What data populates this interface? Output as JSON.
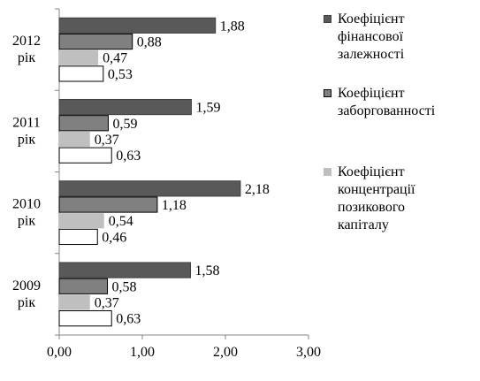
{
  "chart_data": {
    "type": "bar",
    "orientation": "horizontal",
    "categories": [
      [
        "2012",
        "рік"
      ],
      [
        "2011",
        "рік"
      ],
      [
        "2010",
        "рік"
      ],
      [
        "2009",
        "рік"
      ]
    ],
    "series": [
      {
        "name": "Коефіцієнт фінансової залежності",
        "legend_lines": [
          "Коефіцієнт",
          "фінансової",
          "залежності"
        ],
        "color": "#595959",
        "stroke": "#404040",
        "values": [
          1.88,
          1.59,
          2.18,
          1.58
        ]
      },
      {
        "name": "Коефіцієнт заборгованності",
        "legend_lines": [
          "Коефіцієнт",
          "заборгованності"
        ],
        "color": "#808080",
        "stroke": "#000000",
        "values": [
          0.88,
          0.59,
          1.18,
          0.58
        ]
      },
      {
        "name": "Коефіцієнт концентрації позикового капіталу",
        "legend_lines": [
          "Коефіцієнт",
          "концентрації",
          "позикового",
          "капіталу"
        ],
        "color": "#bfbfbf",
        "stroke": "#bfbfbf",
        "values": [
          0.47,
          0.37,
          0.54,
          0.37
        ]
      },
      {
        "name": "",
        "legend_lines": [],
        "color": "#ffffff",
        "stroke": "#000000",
        "values": [
          0.53,
          0.63,
          0.46,
          0.63
        ]
      }
    ],
    "value_labels": [
      [
        "1,88",
        "0,88",
        "0,47",
        "0,53"
      ],
      [
        "1,59",
        "0,59",
        "0,37",
        "0,63"
      ],
      [
        "2,18",
        "1,18",
        "0,54",
        "0,46"
      ],
      [
        "1,58",
        "0,58",
        "0,37",
        "0,63"
      ]
    ],
    "xlim": [
      0,
      3
    ],
    "xticks": [
      "0,00",
      "1,00",
      "2,00",
      "3,00"
    ],
    "title": "",
    "xlabel": "",
    "ylabel": "",
    "grid": false,
    "legend_position": "right"
  }
}
